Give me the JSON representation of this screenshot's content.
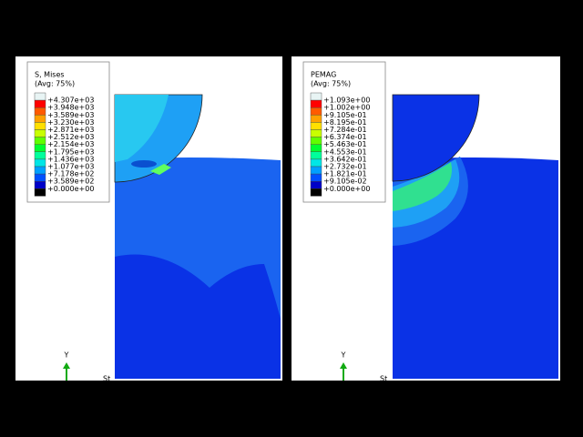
{
  "panels": [
    {
      "legend": {
        "title": "S, Mises",
        "subtitle": "(Avg: 75%)",
        "labels": [
          "+4.307e+03",
          "+3.948e+03",
          "+3.589e+03",
          "+3.230e+03",
          "+2.871e+03",
          "+2.512e+03",
          "+2.154e+03",
          "+1.795e+03",
          "+1.436e+03",
          "+1.077e+03",
          "+7.178e+02",
          "+3.589e+02",
          "+0.000e+00"
        ],
        "colors": [
          "#e8f4f4",
          "#ff0000",
          "#ff5a00",
          "#ffa000",
          "#ffe000",
          "#c8ff00",
          "#60ff00",
          "#00ff30",
          "#00ff9c",
          "#00e6e6",
          "#00a0ff",
          "#0050ff",
          "#0000c8",
          "#000000"
        ]
      },
      "triad_label": "Y",
      "step_label": "St"
    },
    {
      "legend": {
        "title": "PEMAG",
        "subtitle": "(Avg: 75%)",
        "labels": [
          "+1.093e+00",
          "+1.002e+00",
          "+9.105e-01",
          "+8.195e-01",
          "+7.284e-01",
          "+6.374e-01",
          "+5.463e-01",
          "+4.553e-01",
          "+3.642e-01",
          "+2.732e-01",
          "+1.821e-01",
          "+9.105e-02",
          "+0.000e+00"
        ],
        "colors": [
          "#e8f4f4",
          "#ff0000",
          "#ff5a00",
          "#ffa000",
          "#ffe000",
          "#c8ff00",
          "#60ff00",
          "#00ff30",
          "#00ff9c",
          "#00e6e6",
          "#00a0ff",
          "#0050ff",
          "#0000c8",
          "#000000"
        ]
      },
      "triad_label": "Y",
      "step_label": "St"
    }
  ]
}
